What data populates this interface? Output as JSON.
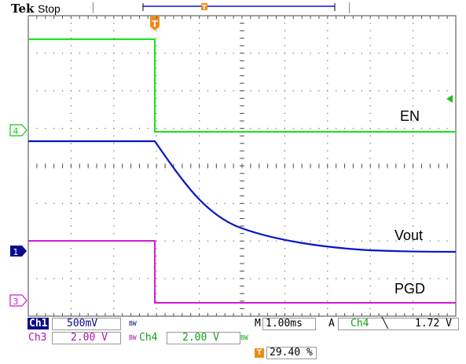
{
  "header": {
    "brand": "Tek",
    "status": "Stop"
  },
  "markers": {
    "trigger_symbol": "T",
    "ch4_marker": "4",
    "ch1_marker": "1",
    "ch3_marker": "3"
  },
  "labels": {
    "en": "EN",
    "vout": "Vout",
    "pgd": "PGD"
  },
  "readouts": {
    "ch1_name": "Ch1",
    "ch1_scale": "500mV",
    "ch1_bw": "BW",
    "ch3_name": "Ch3",
    "ch3_scale": "2.00 V",
    "ch3_bw": "BW",
    "ch4_name": "Ch4",
    "ch4_scale": "2.00 V",
    "ch4_bw": "BW",
    "m_prefix": "M",
    "timebase": "1.00ms",
    "a_prefix": "A",
    "trig_source": "Ch4",
    "trig_slope": "╲",
    "trig_level": "1.72 V",
    "trig_pos_icon": "T",
    "trig_pos": "29.40 %"
  },
  "colors": {
    "ch1": "#0a14c8",
    "ch3": "#d21ad2",
    "ch4": "#14e614",
    "trigger": "#f08c14",
    "grid": "#555555"
  }
}
